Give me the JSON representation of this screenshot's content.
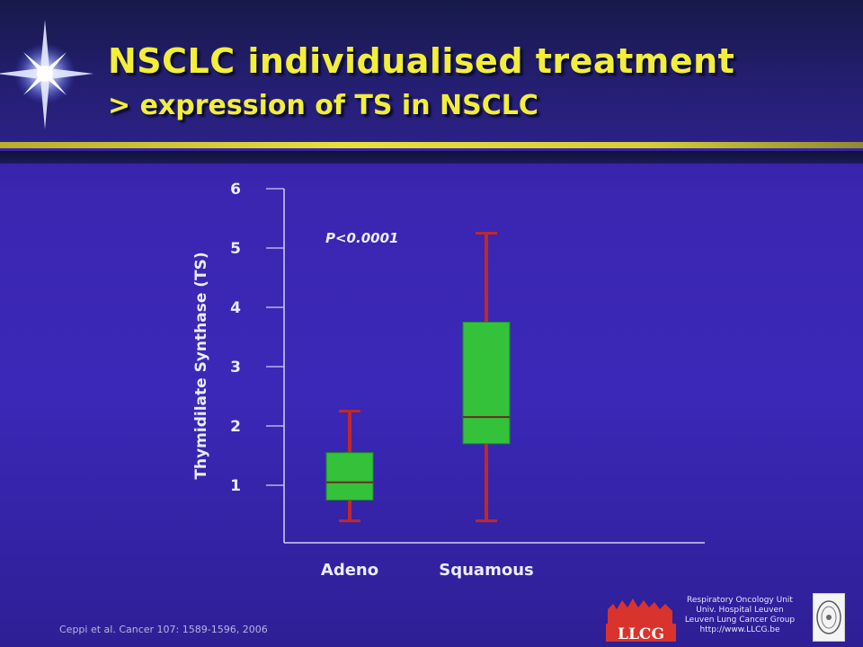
{
  "slide": {
    "title": "NSCLC individualised treatment",
    "subtitle": "> expression of TS in NSCLC",
    "citation": "Ceppi et al. Cancer 107: 1589-1596, 2006",
    "logo_caption": [
      "Respiratory Oncology Unit",
      "Univ. Hospital Leuven",
      "Leuven Lung Cancer Group",
      "http://www.LLCG.be"
    ],
    "logo_letters": "LLCG",
    "colors": {
      "title": "#f2ee3a",
      "box_fill": "#33c23a",
      "whisker": "#c0282a",
      "axis": "#cfd0f2"
    }
  },
  "chart_data": {
    "type": "boxplot",
    "title": "",
    "xlabel": "",
    "ylabel": "Thymidilate Synthase (TS)",
    "yticks": [
      1,
      2,
      3,
      4,
      5,
      6
    ],
    "annotation": "P<0.0001",
    "categories": [
      "Adeno",
      "Squamous"
    ],
    "boxes": [
      {
        "category": "Adeno",
        "whisker_low": 0.4,
        "q1": 0.75,
        "median": 1.05,
        "q3": 1.55,
        "whisker_high": 2.25
      },
      {
        "category": "Squamous",
        "whisker_low": 0.4,
        "q1": 1.7,
        "median": 2.15,
        "q3": 3.75,
        "whisker_high": 5.25
      }
    ]
  }
}
